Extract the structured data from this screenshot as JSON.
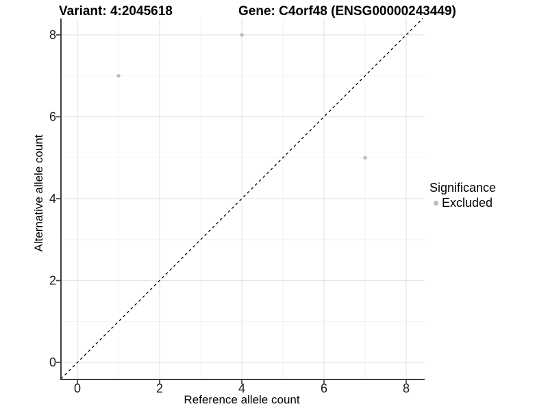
{
  "chart_data": {
    "type": "scatter",
    "titles": {
      "left": "Variant: 4:2045618",
      "right": "Gene: C4orf48 (ENSG00000243449)"
    },
    "xlabel": "Reference allele count",
    "ylabel": "Alternative allele count",
    "xlim": [
      -0.4,
      8.45
    ],
    "ylim": [
      -0.4,
      8.4
    ],
    "xticks": [
      0,
      2,
      4,
      6,
      8
    ],
    "yticks": [
      0,
      2,
      4,
      6,
      8
    ],
    "xminor": [
      1,
      3,
      5,
      7
    ],
    "yminor": [
      1,
      3,
      5,
      7
    ],
    "grid": "major+minor",
    "legend_position": "right",
    "series": [
      {
        "name": "Excluded",
        "marker": "circle",
        "color": "#bcbcbc",
        "points": [
          [
            1,
            7
          ],
          [
            4,
            8
          ],
          [
            7,
            5
          ]
        ]
      }
    ],
    "reference_line": {
      "kind": "identity",
      "dash": "dashed",
      "color": "#000000"
    }
  },
  "legend": {
    "title": "Significance",
    "items": [
      {
        "label": "Excluded",
        "color": "#bcbcbc",
        "marker": "circle"
      }
    ]
  },
  "style": {
    "grid_major": "#e6e6e6",
    "grid_minor": "#f2f2f2",
    "axis_line": "#404040",
    "tick_label_color": "#1a1a1a",
    "tick_label_size": 18
  }
}
